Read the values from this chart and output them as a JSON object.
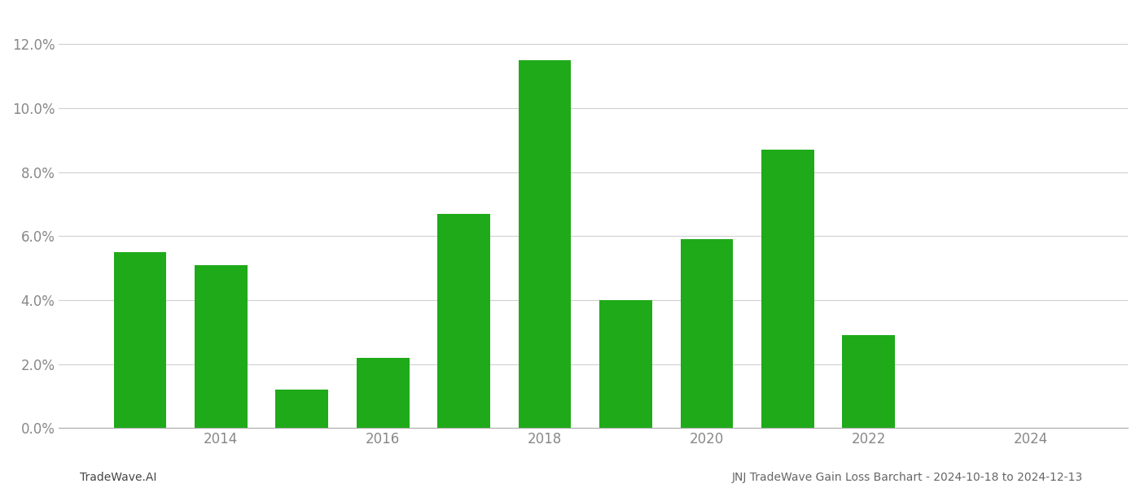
{
  "years": [
    2013,
    2014,
    2015,
    2016,
    2017,
    2018,
    2019,
    2020,
    2021,
    2022,
    2023
  ],
  "values": [
    0.055,
    0.051,
    0.012,
    0.022,
    0.067,
    0.115,
    0.04,
    0.059,
    0.087,
    0.029,
    0.0
  ],
  "bar_color": "#1faa19",
  "background_color": "#ffffff",
  "grid_color": "#d0d0d0",
  "ylim": [
    0,
    0.13
  ],
  "yticks": [
    0.0,
    0.02,
    0.04,
    0.06,
    0.08,
    0.1,
    0.12
  ],
  "xticks": [
    2014,
    2016,
    2018,
    2020,
    2022,
    2024
  ],
  "xlim": [
    2012.0,
    2025.2
  ],
  "footer_left": "TradeWave.AI",
  "footer_right": "JNJ TradeWave Gain Loss Barchart - 2024-10-18 to 2024-12-13",
  "footer_fontsize": 10,
  "tick_fontsize": 12,
  "axis_label_color": "#888888",
  "bar_width": 0.65
}
